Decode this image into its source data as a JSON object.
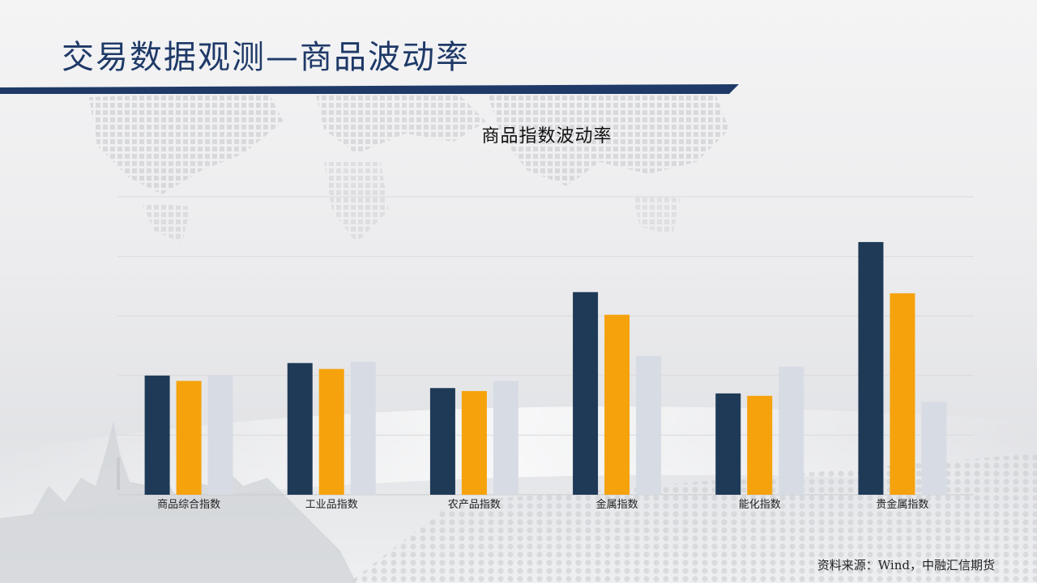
{
  "page": {
    "title": "交易数据观测—商品波动率",
    "source": "资料来源：Wind，中融汇信期货"
  },
  "colors": {
    "title": "#1f3a68",
    "header_rule": "#1f3a68",
    "series": [
      "#1e3a57",
      "#f5a20c",
      "#d7dce4"
    ]
  },
  "chart_data": {
    "type": "bar",
    "title": "商品指数波动率",
    "categories": [
      "商品综合指数",
      "工业品指数",
      "农产品指数",
      "金属指数",
      "能化指数",
      "贵金属指数"
    ],
    "series": [
      {
        "values": [
          20.0,
          22.1,
          17.9,
          34.0,
          17.0,
          42.4
        ]
      },
      {
        "values": [
          19.1,
          21.1,
          17.4,
          30.2,
          16.6,
          33.8
        ]
      },
      {
        "values": [
          20.1,
          22.3,
          19.1,
          23.3,
          21.5,
          15.6
        ]
      }
    ],
    "ylim": [
      0,
      50
    ],
    "gridlines": [
      0,
      10,
      20,
      30,
      40,
      50
    ],
    "grid": true,
    "legend": false,
    "y_tick_labels": false
  }
}
